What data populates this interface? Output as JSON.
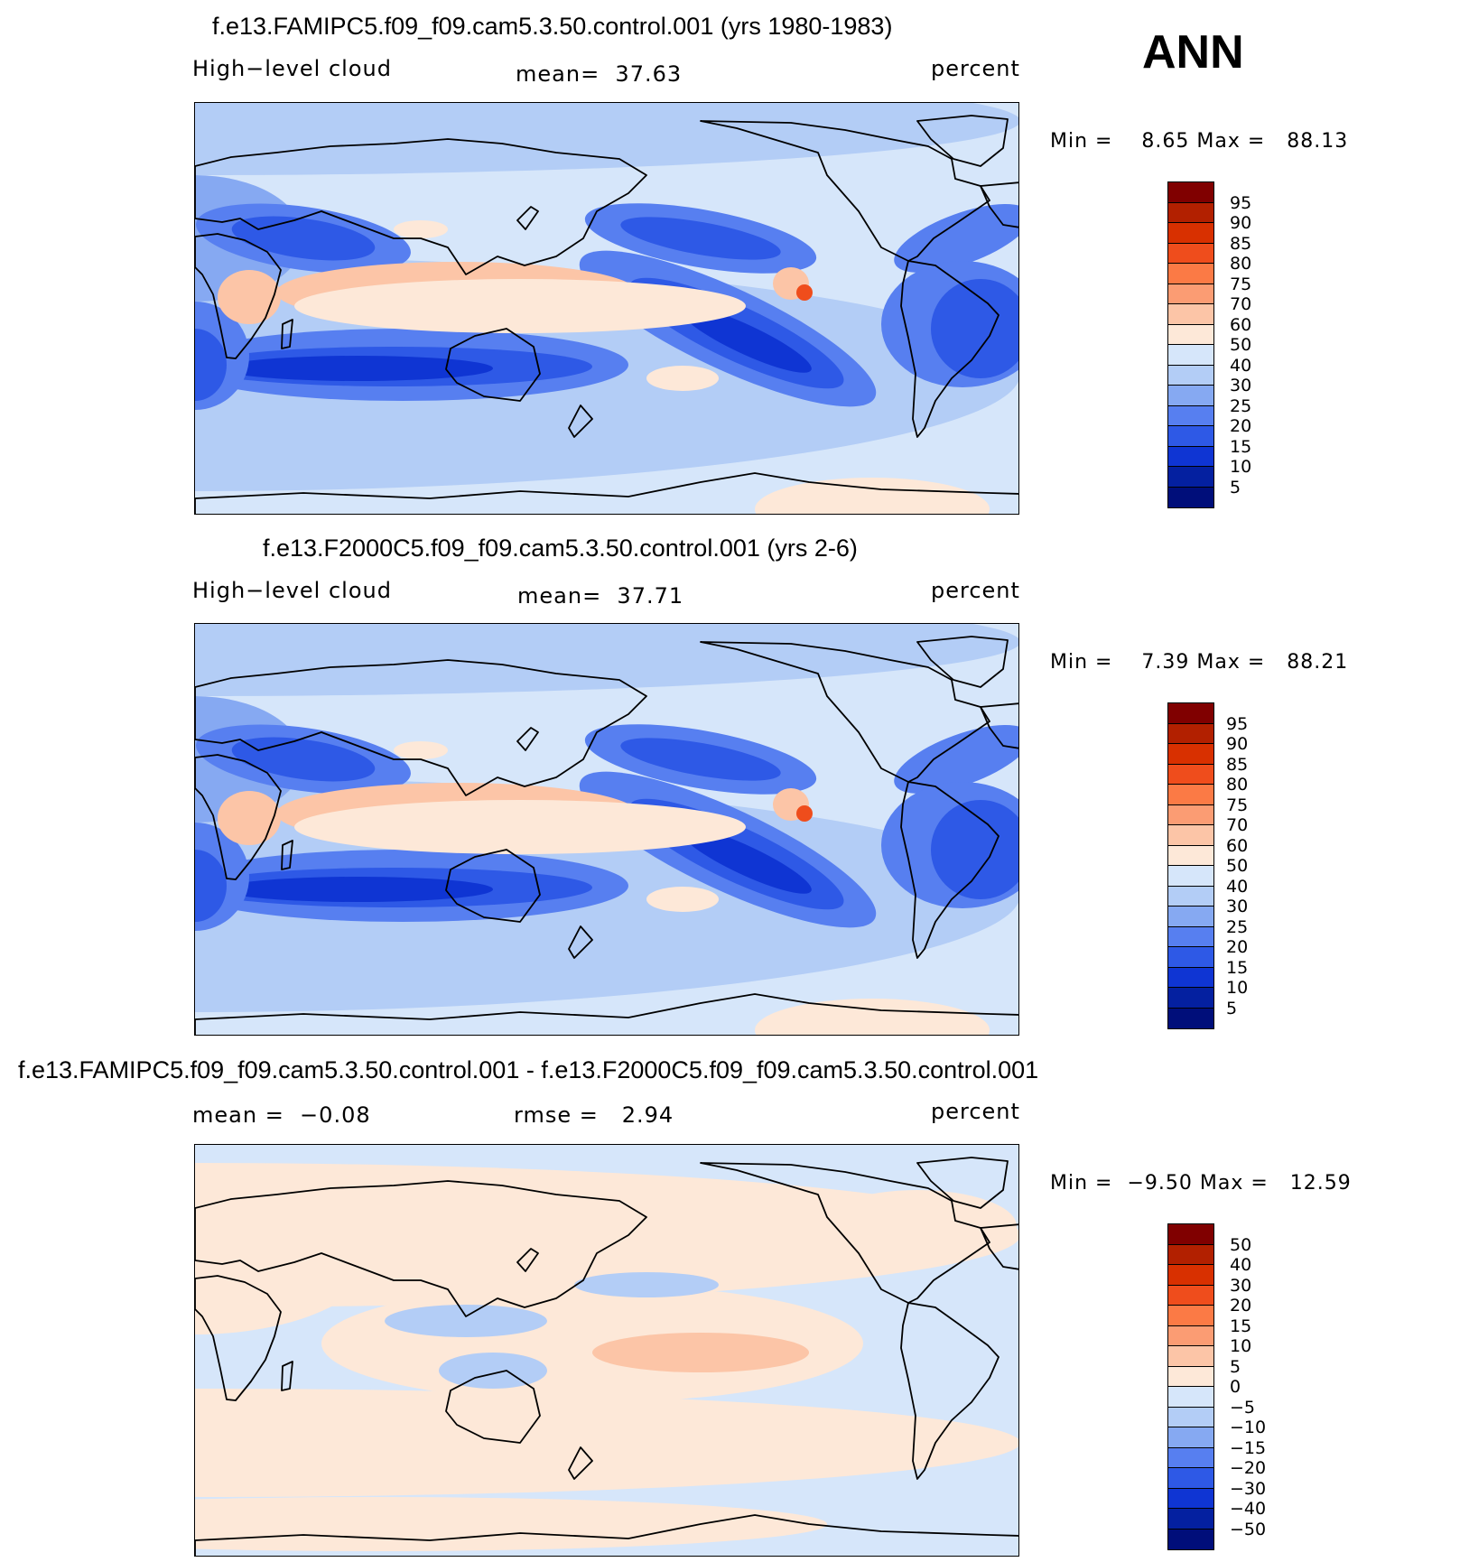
{
  "season": "ANN",
  "panels": [
    {
      "title": "f.e13.FAMIPC5.f09_f09.cam5.3.50.control.001 (yrs 1980-1983)",
      "left_label": "High−level cloud",
      "center_label": "mean=  37.63",
      "units": "percent",
      "minmax": "Min =    8.65 Max =   88.13",
      "colorbar_levels": [
        "95",
        "90",
        "85",
        "80",
        "75",
        "70",
        "60",
        "50",
        "40",
        "30",
        "25",
        "20",
        "15",
        "10",
        "5"
      ],
      "colorbar_colors": [
        "#800000",
        "#b22000",
        "#d83000",
        "#ef4d1c",
        "#fb7a45",
        "#fb9c73",
        "#fcc5a7",
        "#fde8d8",
        "#d6e6fa",
        "#b3cdf6",
        "#86a9f2",
        "#577ff0",
        "#2e59e6",
        "#0f35d3",
        "#0420a0",
        "#000e7a"
      ],
      "map_style": "mean"
    },
    {
      "title": "f.e13.F2000C5.f09_f09.cam5.3.50.control.001 (yrs 2-6)",
      "left_label": "High−level cloud",
      "center_label": "mean=  37.71",
      "units": "percent",
      "minmax": "Min =    7.39 Max =   88.21",
      "colorbar_levels": [
        "95",
        "90",
        "85",
        "80",
        "75",
        "70",
        "60",
        "50",
        "40",
        "30",
        "25",
        "20",
        "15",
        "10",
        "5"
      ],
      "colorbar_colors": [
        "#800000",
        "#b22000",
        "#d83000",
        "#ef4d1c",
        "#fb7a45",
        "#fb9c73",
        "#fcc5a7",
        "#fde8d8",
        "#d6e6fa",
        "#b3cdf6",
        "#86a9f2",
        "#577ff0",
        "#2e59e6",
        "#0f35d3",
        "#0420a0",
        "#000e7a"
      ],
      "map_style": "mean"
    },
    {
      "title": "f.e13.FAMIPC5.f09_f09.cam5.3.50.control.001 - f.e13.F2000C5.f09_f09.cam5.3.50.control.001",
      "left_label": "mean =  −0.08",
      "center_label": "rmse =   2.94",
      "units": "percent",
      "minmax": "Min =  −9.50 Max =   12.59",
      "colorbar_levels": [
        "50",
        "40",
        "30",
        "20",
        "15",
        "10",
        "5",
        "0",
        "−5",
        "−10",
        "−15",
        "−20",
        "−30",
        "−40",
        "−50"
      ],
      "colorbar_colors": [
        "#800000",
        "#b22000",
        "#d83000",
        "#ef4d1c",
        "#fb7a45",
        "#fb9c73",
        "#fcc5a7",
        "#fde8d8",
        "#d6e6fa",
        "#b3cdf6",
        "#86a9f2",
        "#577ff0",
        "#2e59e6",
        "#0f35d3",
        "#0420a0",
        "#000e7a"
      ],
      "map_style": "diff"
    }
  ]
}
